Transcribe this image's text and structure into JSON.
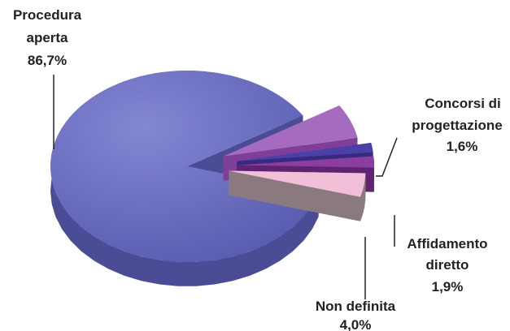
{
  "chart_data": {
    "type": "pie",
    "style": "3d-exploded",
    "slices": [
      {
        "label_line1": "Procedura",
        "label_line2": "aperta",
        "value_text": "86,7%",
        "value": 86.7,
        "color": "#6467b8",
        "side_color": "#4a4d96"
      },
      {
        "label_line1": "",
        "label_line2": "",
        "value_text": "",
        "value": 5.8,
        "color": "#a56bbf",
        "side_color": "#7f3f98"
      },
      {
        "label_line1": "Concorsi di",
        "label_line2": "progettazione",
        "value_text": "1,6%",
        "value": 1.6,
        "color": "#4b3fa8",
        "side_color": "#352a80"
      },
      {
        "label_line1": "Affidamento",
        "label_line2": "diretto",
        "value_text": "1,9%",
        "value": 1.9,
        "color": "#8a3fa0",
        "side_color": "#5e2470"
      },
      {
        "label_line1": "Non definita",
        "label_line2": "",
        "value_text": "4,0%",
        "value": 4.0,
        "color": "#f2bfd8",
        "side_color": "#8a7a80"
      }
    ]
  }
}
